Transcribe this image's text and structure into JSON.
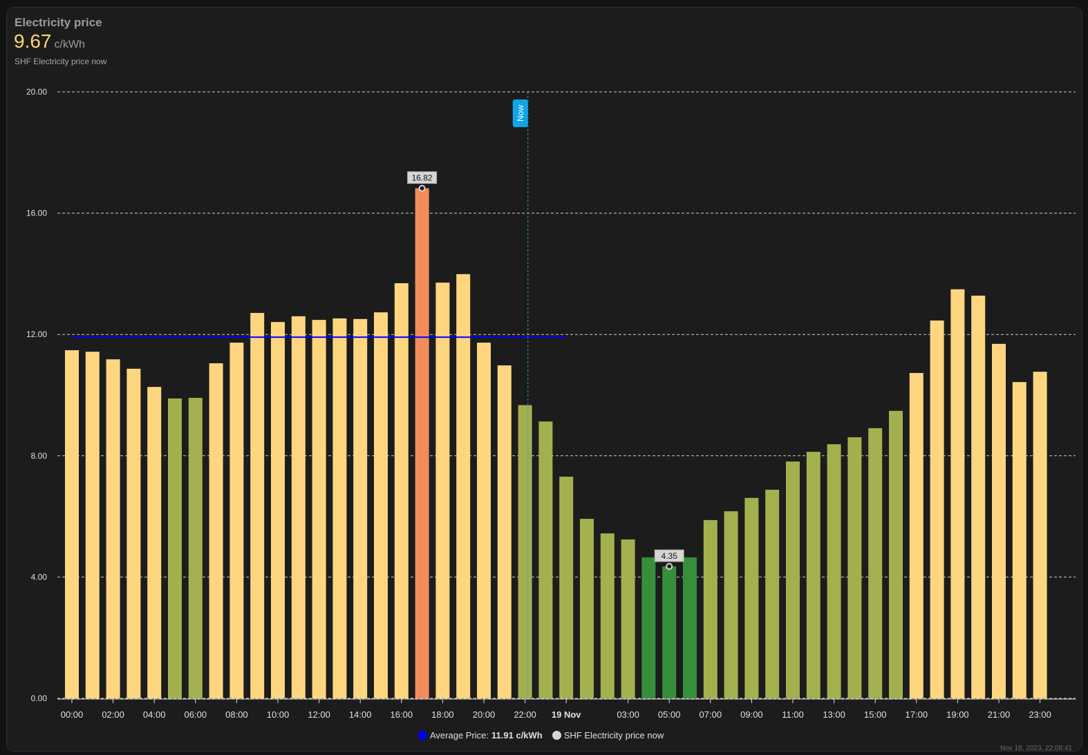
{
  "card": {
    "title": "Electricity price",
    "value": "9.67",
    "unit": "c/kWh",
    "subtitle": "SHF Electricity price now",
    "timestamp": "Nov 18, 2023, 22:08:41"
  },
  "legend": {
    "avg_label": "Average Price:",
    "avg_value": "11.91 c/kWh",
    "now_label": "SHF Electricity price now",
    "avg_color": "#0000ff",
    "now_color": "#d6d6d6"
  },
  "chart_data": {
    "type": "bar",
    "title": "Electricity price",
    "ylabel": "c/kWh",
    "ylim": [
      0,
      20
    ],
    "yticks": [
      "0.00",
      "4.00",
      "8.00",
      "12.00",
      "16.00",
      "20.00"
    ],
    "xticks": [
      {
        "i": 0,
        "label": "00:00"
      },
      {
        "i": 2,
        "label": "02:00"
      },
      {
        "i": 4,
        "label": "04:00"
      },
      {
        "i": 6,
        "label": "06:00"
      },
      {
        "i": 8,
        "label": "08:00"
      },
      {
        "i": 10,
        "label": "10:00"
      },
      {
        "i": 12,
        "label": "12:00"
      },
      {
        "i": 14,
        "label": "14:00"
      },
      {
        "i": 16,
        "label": "16:00"
      },
      {
        "i": 18,
        "label": "18:00"
      },
      {
        "i": 20,
        "label": "20:00"
      },
      {
        "i": 22,
        "label": "22:00"
      },
      {
        "i": 24,
        "label": "19 Nov",
        "bold": true
      },
      {
        "i": 27,
        "label": "03:00"
      },
      {
        "i": 29,
        "label": "05:00"
      },
      {
        "i": 31,
        "label": "07:00"
      },
      {
        "i": 33,
        "label": "09:00"
      },
      {
        "i": 35,
        "label": "11:00"
      },
      {
        "i": 37,
        "label": "13:00"
      },
      {
        "i": 39,
        "label": "15:00"
      },
      {
        "i": 41,
        "label": "17:00"
      },
      {
        "i": 43,
        "label": "19:00"
      },
      {
        "i": 45,
        "label": "21:00"
      },
      {
        "i": 47,
        "label": "23:00"
      }
    ],
    "values": [
      11.48,
      11.43,
      11.18,
      10.87,
      10.27,
      9.89,
      9.91,
      11.05,
      11.73,
      12.71,
      12.41,
      12.6,
      12.48,
      12.53,
      12.51,
      12.73,
      13.69,
      16.82,
      13.71,
      13.99,
      11.73,
      10.98,
      9.67,
      9.13,
      7.31,
      5.92,
      5.44,
      5.24,
      4.65,
      4.35,
      4.65,
      5.88,
      6.17,
      6.61,
      6.88,
      7.81,
      8.13,
      8.38,
      8.61,
      8.91,
      9.48,
      10.73,
      12.46,
      13.49,
      13.28,
      11.69,
      10.43,
      10.77
    ],
    "color_thresholds": [
      {
        "max": 4.7,
        "color": "#368f3a"
      },
      {
        "max": 10,
        "color": "#a4b04e"
      },
      {
        "max": 15,
        "color": "#ffd680"
      },
      {
        "max": 99,
        "color": "#f28c5a"
      }
    ],
    "average": {
      "value": 11.91,
      "from_index": 0,
      "to_index": 24
    },
    "now": {
      "label": "Now",
      "index": 22.14,
      "color": "#0ea5e9"
    },
    "annotations": [
      {
        "index": 17,
        "label": "16.82"
      },
      {
        "index": 29,
        "label": "4.35"
      }
    ]
  }
}
